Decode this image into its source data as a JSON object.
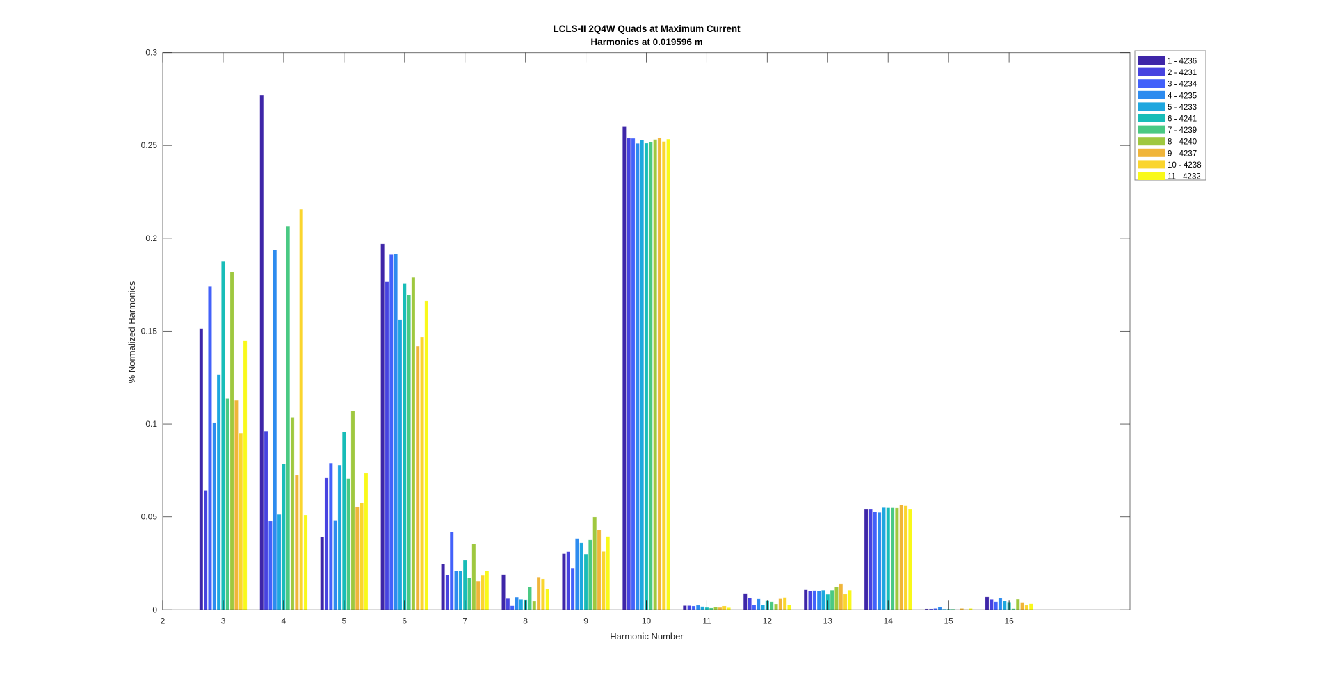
{
  "chart_data": {
    "type": "bar",
    "title": "LCLS-II 2Q4W Quads at Maximum Current",
    "subtitle": "Harmonics at 0.019596 m",
    "xlabel": "Harmonic Number",
    "ylabel": "% Normalized Harmonics",
    "xlim": [
      2,
      18
    ],
    "ylim": [
      0,
      0.3
    ],
    "xticks": [
      "2",
      "3",
      "4",
      "5",
      "6",
      "7",
      "8",
      "9",
      "10",
      "11",
      "12",
      "13",
      "14",
      "15",
      "16"
    ],
    "yticks": [
      "0",
      "0.05",
      "0.1",
      "0.15",
      "0.2",
      "0.25",
      "0.3"
    ],
    "grid": false,
    "legend_position": "outside-top-right",
    "categories": [
      3,
      4,
      5,
      6,
      7,
      8,
      9,
      10,
      11,
      12,
      13,
      14,
      15,
      16
    ],
    "series": [
      {
        "name": "1 - 4236",
        "color": "#3e26a8",
        "values": [
          0.1514,
          0.277,
          0.0394,
          0.197,
          0.0246,
          0.0189,
          0.0302,
          0.26,
          0.0022,
          0.0088,
          0.0107,
          0.054,
          0.0005,
          0.0069
        ]
      },
      {
        "name": "2 - 4231",
        "color": "#4743e0",
        "values": [
          0.0643,
          0.0962,
          0.0709,
          0.1765,
          0.0186,
          0.006,
          0.0313,
          0.2539,
          0.0022,
          0.0064,
          0.0102,
          0.054,
          0.0005,
          0.0056
        ]
      },
      {
        "name": "3 - 4234",
        "color": "#4361fa",
        "values": [
          0.174,
          0.0477,
          0.079,
          0.1912,
          0.0418,
          0.0021,
          0.0225,
          0.2538,
          0.002,
          0.0027,
          0.0103,
          0.0527,
          0.0007,
          0.0043
        ]
      },
      {
        "name": "4 - 4235",
        "color": "#2d8bef",
        "values": [
          0.1008,
          0.1938,
          0.0482,
          0.1917,
          0.0208,
          0.0068,
          0.0384,
          0.2511,
          0.0024,
          0.0058,
          0.0102,
          0.0524,
          0.0016,
          0.0062
        ]
      },
      {
        "name": "5 - 4233",
        "color": "#1ea7df",
        "values": [
          0.1267,
          0.0513,
          0.0779,
          0.1562,
          0.0208,
          0.0056,
          0.0361,
          0.2528,
          0.0017,
          0.0026,
          0.0105,
          0.055,
          0.0004,
          0.0048
        ]
      },
      {
        "name": "6 - 4241",
        "color": "#18bdb8",
        "values": [
          0.1875,
          0.0785,
          0.0957,
          0.1758,
          0.0267,
          0.0054,
          0.03,
          0.2512,
          0.0012,
          0.0051,
          0.0083,
          0.0549,
          0.0004,
          0.0041
        ]
      },
      {
        "name": "7 - 4239",
        "color": "#4ac983",
        "values": [
          0.1137,
          0.2066,
          0.0706,
          0.1694,
          0.0171,
          0.0123,
          0.0376,
          0.2517,
          0.0009,
          0.0043,
          0.0105,
          0.0549,
          0.0004,
          0.0006
        ]
      },
      {
        "name": "8 - 4240",
        "color": "#9fc83f",
        "values": [
          0.1817,
          0.1036,
          0.1069,
          0.1789,
          0.0355,
          0.0046,
          0.0499,
          0.2532,
          0.0016,
          0.0031,
          0.0124,
          0.0548,
          0.0001,
          0.0057
        ]
      },
      {
        "name": "9 - 4237",
        "color": "#f0b53a",
        "values": [
          0.1127,
          0.0724,
          0.0555,
          0.1419,
          0.0154,
          0.0176,
          0.043,
          0.2542,
          0.0012,
          0.0059,
          0.014,
          0.0566,
          0.0007,
          0.004
        ]
      },
      {
        "name": "10 - 4238",
        "color": "#fad52e",
        "values": [
          0.0951,
          0.2156,
          0.0577,
          0.1468,
          0.0184,
          0.0166,
          0.0314,
          0.2521,
          0.002,
          0.0066,
          0.0084,
          0.056,
          0.0002,
          0.0024
        ]
      },
      {
        "name": "11 - 4232",
        "color": "#f9f91a",
        "values": [
          0.145,
          0.051,
          0.0735,
          0.1663,
          0.021,
          0.0112,
          0.0395,
          0.2534,
          0.0011,
          0.0027,
          0.0105,
          0.054,
          0.0007,
          0.0032
        ]
      }
    ]
  }
}
